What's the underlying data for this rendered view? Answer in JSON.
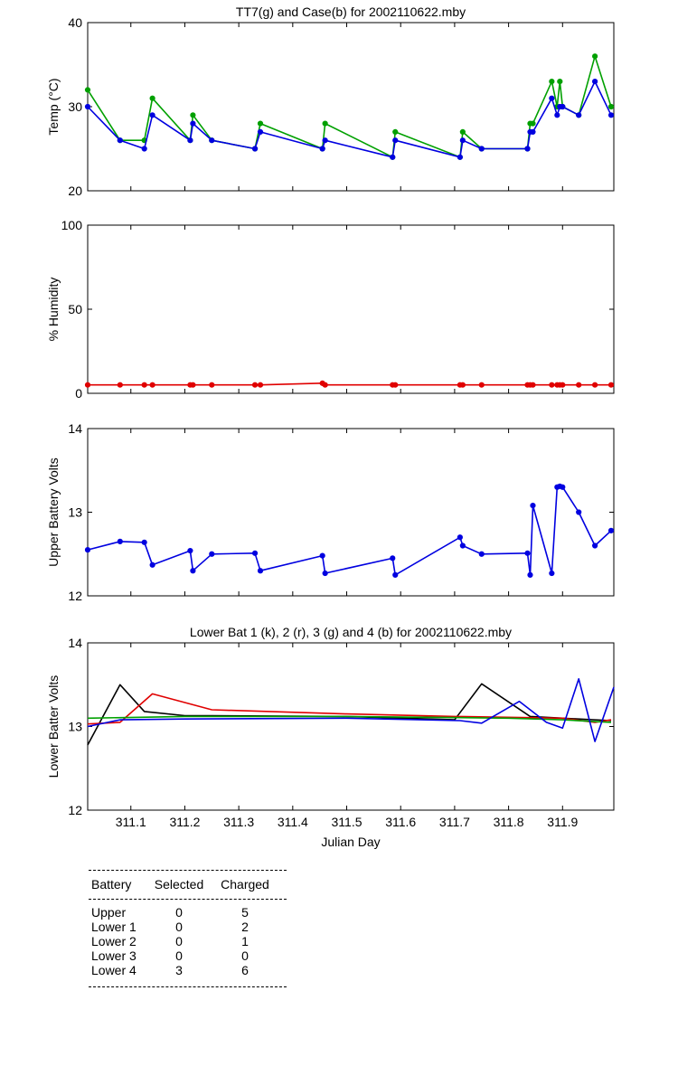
{
  "chart_data": [
    {
      "type": "line",
      "title": "TT7(g) and Case(b) for 2002110622.mby",
      "xlabel": "",
      "ylabel": "Temp  (°C)",
      "xlim": [
        311.02,
        311.995
      ],
      "ylim": [
        20,
        40
      ],
      "y_ticks": [
        "20",
        "30",
        "40"
      ],
      "x_ticks": [],
      "grid": false,
      "markers": true,
      "series": [
        {
          "color": "#00a000",
          "x": [
            311.02,
            311.08,
            311.125,
            311.14,
            311.21,
            311.215,
            311.25,
            311.33,
            311.34,
            311.455,
            311.46,
            311.585,
            311.59,
            311.71,
            311.715,
            311.75,
            311.835,
            311.84,
            311.845,
            311.88,
            311.89,
            311.895,
            311.9,
            311.93,
            311.96,
            311.99
          ],
          "y": [
            32,
            26,
            26,
            31,
            26,
            29,
            26,
            25,
            28,
            25,
            28,
            24,
            27,
            24,
            27,
            25,
            25,
            28,
            28,
            33,
            30,
            33,
            30,
            29,
            36,
            30
          ]
        },
        {
          "color": "#0000e0",
          "x": [
            311.02,
            311.08,
            311.125,
            311.14,
            311.21,
            311.215,
            311.25,
            311.33,
            311.34,
            311.455,
            311.46,
            311.585,
            311.59,
            311.71,
            311.715,
            311.75,
            311.835,
            311.84,
            311.845,
            311.88,
            311.89,
            311.895,
            311.9,
            311.93,
            311.96,
            311.99
          ],
          "y": [
            30,
            26,
            25,
            29,
            26,
            28,
            26,
            25,
            27,
            25,
            26,
            24,
            26,
            24,
            26,
            25,
            25,
            27,
            27,
            31,
            29,
            30,
            30,
            29,
            33,
            29
          ]
        }
      ]
    },
    {
      "type": "line",
      "title": "",
      "xlabel": "",
      "ylabel": "% Humidity",
      "xlim": [
        311.02,
        311.995
      ],
      "ylim": [
        0,
        100
      ],
      "y_ticks": [
        "0",
        "50",
        "100"
      ],
      "x_ticks": [],
      "grid": false,
      "markers": true,
      "series": [
        {
          "color": "#e00000",
          "x": [
            311.02,
            311.08,
            311.125,
            311.14,
            311.21,
            311.215,
            311.25,
            311.33,
            311.34,
            311.455,
            311.46,
            311.585,
            311.59,
            311.71,
            311.715,
            311.75,
            311.835,
            311.84,
            311.845,
            311.88,
            311.89,
            311.895,
            311.9,
            311.93,
            311.96,
            311.99
          ],
          "y": [
            5,
            5,
            5,
            5,
            5,
            5,
            5,
            5,
            5,
            6,
            5,
            5,
            5,
            5,
            5,
            5,
            5,
            5,
            5,
            5,
            5,
            5,
            5,
            5,
            5,
            5
          ]
        }
      ]
    },
    {
      "type": "line",
      "title": "",
      "xlabel": "",
      "ylabel": "Upper Battery Volts",
      "xlim": [
        311.02,
        311.995
      ],
      "ylim": [
        12,
        14
      ],
      "y_ticks": [
        "12",
        "13",
        "14"
      ],
      "x_ticks": [],
      "grid": false,
      "markers": true,
      "series": [
        {
          "color": "#0000e0",
          "x": [
            311.02,
            311.08,
            311.125,
            311.14,
            311.21,
            311.215,
            311.25,
            311.33,
            311.34,
            311.455,
            311.46,
            311.585,
            311.59,
            311.71,
            311.715,
            311.75,
            311.835,
            311.84,
            311.845,
            311.88,
            311.89,
            311.895,
            311.9,
            311.93,
            311.96,
            311.99
          ],
          "y": [
            12.55,
            12.65,
            12.64,
            12.37,
            12.54,
            12.3,
            12.5,
            12.51,
            12.3,
            12.48,
            12.27,
            12.45,
            12.25,
            12.7,
            12.6,
            12.5,
            12.51,
            12.25,
            13.08,
            12.27,
            13.3,
            13.31,
            13.3,
            13.0,
            12.6,
            12.78
          ]
        }
      ]
    },
    {
      "type": "line",
      "title": "Lower Bat 1 (k), 2 (r), 3 (g) and 4 (b) for 2002110622.mby",
      "xlabel": "Julian Day",
      "ylabel": "Lower Batter Volts",
      "xlim": [
        311.02,
        311.995
      ],
      "ylim": [
        12,
        14
      ],
      "y_ticks": [
        "12",
        "13",
        "14"
      ],
      "x_ticks": [
        "311.1",
        "311.2",
        "311.3",
        "311.4",
        "311.5",
        "311.6",
        "311.7",
        "311.8",
        "311.9"
      ],
      "grid": false,
      "markers": false,
      "series": [
        {
          "color": "#000000",
          "x": [
            311.02,
            311.08,
            311.125,
            311.2,
            311.25,
            311.5,
            311.7,
            311.75,
            311.84,
            311.9,
            311.99
          ],
          "y": [
            12.78,
            13.5,
            13.18,
            13.13,
            13.13,
            13.12,
            13.08,
            13.51,
            13.12,
            13.1,
            13.07
          ]
        },
        {
          "color": "#e00000",
          "x": [
            311.02,
            311.08,
            311.14,
            311.25,
            311.5,
            311.7,
            311.9,
            311.96,
            311.99
          ],
          "y": [
            13.03,
            13.05,
            13.39,
            13.2,
            13.15,
            13.12,
            13.1,
            13.05,
            13.08
          ]
        },
        {
          "color": "#00a000",
          "x": [
            311.02,
            311.2,
            311.5,
            311.8,
            311.9,
            311.99
          ],
          "y": [
            13.1,
            13.12,
            13.12,
            13.1,
            13.08,
            13.05
          ]
        },
        {
          "color": "#0000e0",
          "x": [
            311.02,
            311.08,
            311.2,
            311.5,
            311.71,
            311.75,
            311.82,
            311.87,
            311.9,
            311.93,
            311.96,
            311.995
          ],
          "y": [
            13.0,
            13.08,
            13.09,
            13.1,
            13.07,
            13.04,
            13.3,
            13.05,
            12.98,
            13.57,
            12.82,
            13.47
          ]
        }
      ]
    }
  ],
  "table": {
    "headers": [
      "Battery",
      "Selected",
      "Charged"
    ],
    "rows": [
      [
        "Upper",
        "0",
        "5"
      ],
      [
        "Lower 1",
        "0",
        "2"
      ],
      [
        "Lower 2",
        "0",
        "1"
      ],
      [
        "Lower 3",
        "0",
        "0"
      ],
      [
        "Lower 4",
        "3",
        "6"
      ]
    ]
  }
}
